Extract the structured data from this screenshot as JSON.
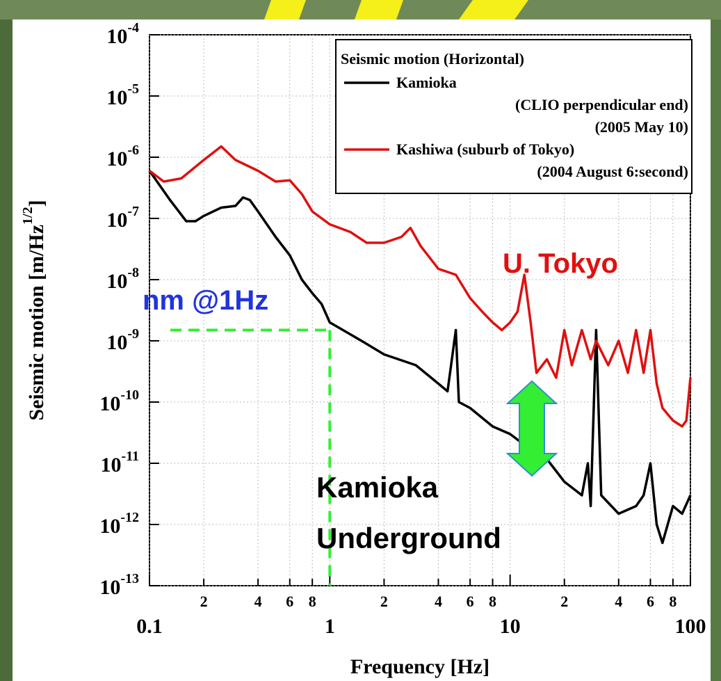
{
  "chart_data": {
    "type": "line",
    "xlabel": "Frequency [Hz]",
    "ylabel": "Seismic motion [m/Hz",
    "ylabel_sup": "1/2",
    "ylabel_end": "]",
    "xscale": "log",
    "yscale": "log",
    "grid": true,
    "xlim": [
      0.1,
      100
    ],
    "ylim": [
      1e-13,
      0.0001
    ],
    "xticks": [
      0.1,
      {
        "value": 0.2,
        "label": "2"
      },
      {
        "value": 0.4,
        "label": "4"
      },
      {
        "value": 0.6,
        "label": "6"
      },
      {
        "value": 0.8,
        "label": "8"
      },
      1,
      2,
      4,
      6,
      8,
      10,
      {
        "value": 20,
        "label": "2"
      },
      {
        "value": 40,
        "label": "4"
      },
      {
        "value": 60,
        "label": "6"
      },
      {
        "value": 80,
        "label": "8"
      },
      100
    ],
    "yticks": [
      {
        "value": 0.0001,
        "label": "10-4"
      },
      {
        "value": 1e-05,
        "label": "10-5"
      },
      {
        "value": 1e-06,
        "label": "10-6"
      },
      {
        "value": 1e-07,
        "label": "10-7"
      },
      {
        "value": 1e-08,
        "label": "10-8"
      },
      {
        "value": 1e-09,
        "label": "10-9"
      },
      {
        "value": 1e-10,
        "label": "10-10"
      },
      {
        "value": 1e-11,
        "label": "10-11"
      },
      {
        "value": 1e-12,
        "label": "10-12"
      },
      {
        "value": 1e-13,
        "label": "10-13"
      }
    ],
    "legend_title": "Seismic motion (Horizontal)",
    "legend_position": "upper right",
    "series": [
      {
        "name": "Kamioka",
        "notes": [
          "(CLIO perpendicular end)",
          "(2005 May 10)"
        ],
        "color": "#000000",
        "x": [
          0.1,
          0.13,
          0.16,
          0.18,
          0.2,
          0.25,
          0.3,
          0.33,
          0.36,
          0.4,
          0.5,
          0.6,
          0.7,
          0.8,
          0.9,
          1,
          1.5,
          2,
          3,
          4,
          4.5,
          5,
          5.2,
          6,
          8,
          10,
          12,
          15,
          20,
          25,
          27,
          28,
          30,
          32,
          40,
          50,
          55,
          60,
          65,
          70,
          80,
          90,
          100
        ],
        "values": [
          6e-07,
          2e-07,
          9e-08,
          9e-08,
          1.1e-07,
          1.5e-07,
          1.6e-07,
          2.2e-07,
          2e-07,
          1.3e-07,
          5e-08,
          2.5e-08,
          1e-08,
          6e-09,
          4e-09,
          2e-09,
          1e-09,
          6e-10,
          4e-10,
          2e-10,
          1.5e-10,
          1.5e-09,
          1e-10,
          8e-11,
          4e-11,
          3e-11,
          2e-11,
          1.5e-11,
          5e-12,
          3e-12,
          1e-11,
          2e-12,
          1.5e-09,
          3e-12,
          1.5e-12,
          2e-12,
          3e-12,
          1e-11,
          1e-12,
          5e-13,
          2e-12,
          1.5e-12,
          3e-12
        ]
      },
      {
        "name": "Kashiwa (suburb of Tokyo)",
        "notes": [
          "(2004 August 6:second)"
        ],
        "color": "#e01010",
        "x": [
          0.1,
          0.12,
          0.15,
          0.2,
          0.25,
          0.3,
          0.4,
          0.5,
          0.6,
          0.7,
          0.8,
          1,
          1.3,
          1.6,
          2,
          2.5,
          2.8,
          3.2,
          4,
          5,
          6,
          7,
          8,
          9,
          10,
          11,
          12,
          13,
          14,
          16,
          18,
          20,
          22,
          25,
          28,
          30,
          35,
          40,
          45,
          50,
          55,
          60,
          65,
          70,
          80,
          90,
          95,
          100
        ],
        "values": [
          6e-07,
          4e-07,
          4.5e-07,
          9e-07,
          1.5e-06,
          9e-07,
          6e-07,
          4e-07,
          4.2e-07,
          2.5e-07,
          1.3e-07,
          8e-08,
          6e-08,
          4e-08,
          4e-08,
          5e-08,
          7e-08,
          3.5e-08,
          1.5e-08,
          1.2e-08,
          5e-09,
          3e-09,
          2e-09,
          1.5e-09,
          2e-09,
          3e-09,
          1.2e-08,
          2e-09,
          3e-10,
          5e-10,
          2.5e-10,
          1.5e-09,
          4e-10,
          1.5e-09,
          5e-10,
          1e-09,
          4e-10,
          1e-09,
          3e-10,
          1.5e-09,
          3e-10,
          1.5e-09,
          2e-10,
          8e-11,
          5e-11,
          4e-11,
          5e-11,
          2.5e-10
        ]
      }
    ],
    "reference": {
      "x": 1,
      "y": 1.5e-09
    },
    "annotations": [
      "nm @1Hz",
      "U. Tokyo",
      "Kamioka",
      "Underground"
    ]
  }
}
